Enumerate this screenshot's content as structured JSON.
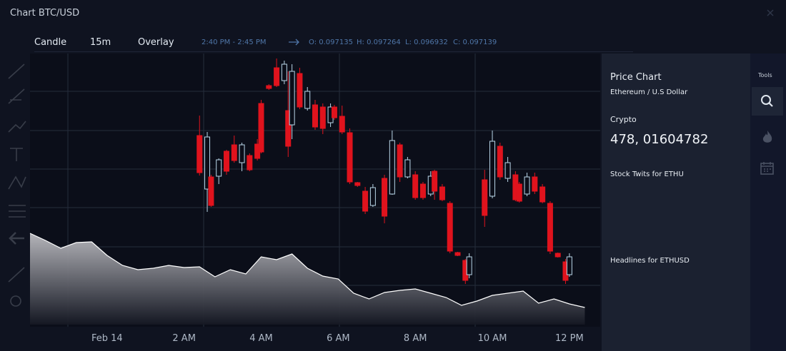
{
  "header": {
    "title": "Chart BTC/USD"
  },
  "toolbar": {
    "items": [
      "Candle",
      "15m",
      "Overlay"
    ],
    "time_range": "2:40 PM - 2:45 PM",
    "ohlc": [
      "O: 0.097135",
      "H: 0.097264",
      "L: 0.096932",
      "C: 0.097139"
    ]
  },
  "side_panel": {
    "title": "Price Chart",
    "pair": "Ethereum / U.S Dollar",
    "category": "Crypto",
    "value": "478, 01604782",
    "stock_twits": "Stock Twits for ETHU",
    "headlines": "Headlines for ETHUSD"
  },
  "tools": {
    "label": "Tools"
  },
  "chart_data": {
    "type": "candlestick",
    "xlim": [
      -2.0,
      12.8
    ],
    "ylim": [
      0,
      380
    ],
    "xticks": [
      {
        "value": 0,
        "label": "Feb 14"
      },
      {
        "value": 2,
        "label": "2 AM"
      },
      {
        "value": 4,
        "label": "4 AM"
      },
      {
        "value": 6,
        "label": "6 AM"
      },
      {
        "value": 8,
        "label": "8 AM"
      },
      {
        "value": 10,
        "label": "10 AM"
      },
      {
        "value": 12,
        "label": "12 PM"
      }
    ],
    "up_color": "#b9d6e8",
    "down_color": "#e0131d",
    "candles": {
      "x": [
        2.4,
        2.6,
        2.7,
        2.9,
        3.1,
        3.3,
        3.5,
        3.7,
        3.9,
        4.0,
        4.2,
        4.4,
        4.6,
        4.7,
        4.8,
        5.0,
        5.2,
        5.4,
        5.6,
        5.8,
        5.9,
        6.1,
        6.3,
        6.5,
        6.7,
        6.9,
        7.2,
        7.4,
        7.6,
        7.8,
        8.0,
        8.2,
        8.4,
        8.5,
        8.7,
        8.9,
        9.1,
        9.3,
        9.4,
        9.8,
        10.0,
        10.2,
        10.4,
        10.6,
        10.7,
        10.9,
        11.1,
        11.3,
        11.5,
        11.7,
        11.9,
        12.0
      ],
      "open": [
        265,
        190,
        207,
        208,
        243,
        252,
        227,
        237,
        253,
        310,
        335,
        360,
        342,
        300,
        280,
        352,
        303,
        308,
        305,
        283,
        305,
        292,
        269,
        199,
        187,
        167,
        205,
        183,
        252,
        207,
        210,
        197,
        183,
        215,
        193,
        170,
        101,
        90,
        70,
        203,
        180,
        250,
        205,
        210,
        197,
        183,
        207,
        193,
        170,
        100,
        88,
        70
      ],
      "high": [
        293,
        270,
        210,
        233,
        245,
        265,
        255,
        240,
        260,
        315,
        337,
        373,
        370,
        355,
        365,
        360,
        333,
        315,
        310,
        310,
        308,
        307,
        275,
        200,
        193,
        197,
        210,
        272,
        255,
        235,
        215,
        200,
        215,
        217,
        197,
        173,
        102,
        92,
        100,
        217,
        272,
        255,
        235,
        215,
        200,
        213,
        213,
        197,
        173,
        101,
        92,
        100
      ],
      "low": [
        209,
        158,
        165,
        197,
        210,
        227,
        215,
        215,
        230,
        240,
        329,
        333,
        337,
        235,
        260,
        302,
        300,
        273,
        267,
        277,
        287,
        267,
        197,
        193,
        155,
        165,
        142,
        182,
        200,
        205,
        175,
        175,
        180,
        175,
        173,
        100,
        96,
        57,
        65,
        137,
        177,
        203,
        200,
        173,
        171,
        180,
        183,
        170,
        99,
        94,
        57,
        67
      ],
      "close": [
        213,
        263,
        167,
        231,
        215,
        230,
        252,
        217,
        233,
        242,
        331,
        335,
        365,
        250,
        355,
        305,
        327,
        277,
        275,
        305,
        290,
        270,
        200,
        195,
        159,
        192,
        152,
        258,
        207,
        231,
        178,
        178,
        208,
        187,
        175,
        103,
        97,
        62,
        95,
        153,
        257,
        207,
        227,
        175,
        173,
        207,
        187,
        172,
        103,
        95,
        62,
        95
      ]
    },
    "area": {
      "color": "#ffffff",
      "x": [
        -2.0,
        -1.6,
        -1.2,
        -0.8,
        -0.4,
        0.0,
        0.4,
        0.8,
        1.2,
        1.6,
        2.0,
        2.4,
        2.8,
        3.2,
        3.6,
        4.0,
        4.4,
        4.8,
        5.2,
        5.6,
        6.0,
        6.4,
        6.8,
        7.2,
        7.6,
        8.0,
        8.4,
        8.8,
        9.2,
        9.6,
        10.0,
        10.4,
        10.8,
        11.2,
        11.6,
        12.0,
        12.4
      ],
      "values": [
        128,
        118,
        107,
        115,
        116,
        97,
        83,
        77,
        79,
        83,
        80,
        81,
        67,
        77,
        71,
        95,
        91,
        99,
        79,
        68,
        64,
        44,
        36,
        45,
        48,
        50,
        44,
        38,
        27,
        33,
        41,
        44,
        47,
        30,
        36,
        29,
        24
      ]
    }
  }
}
